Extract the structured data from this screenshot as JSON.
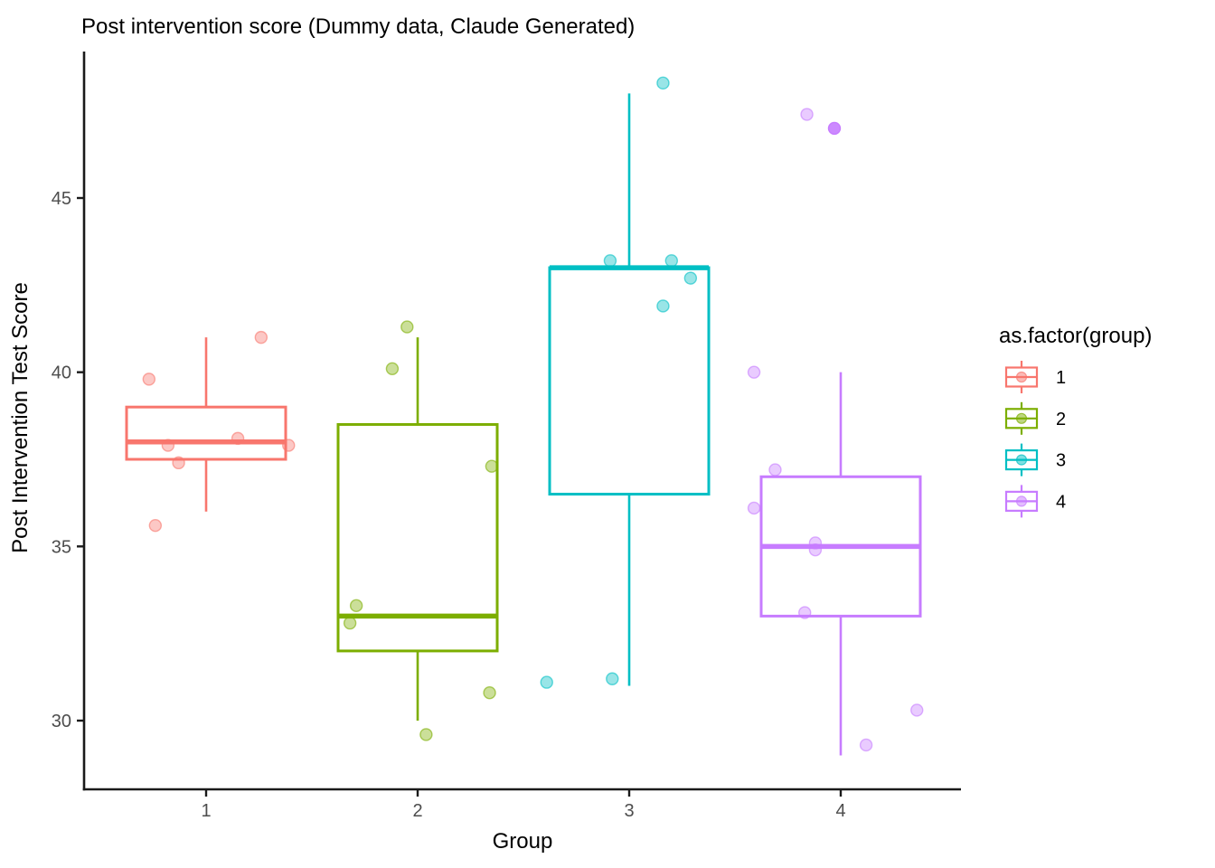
{
  "chart_data": {
    "type": "boxplot",
    "title": "Post intervention score (Dummy data, Claude Generated)",
    "xlabel": "Group",
    "ylabel": "Post Intervention Test Score",
    "categories": [
      "1",
      "2",
      "3",
      "4"
    ],
    "y_ticks": [
      30,
      35,
      40,
      45
    ],
    "ylim": [
      28.0,
      49.2
    ],
    "grid": false,
    "panel_background": "#ffffff",
    "axis_color": "#1a1a1a",
    "tick_label_color": "#4d4d4d",
    "legend": {
      "title": "as.factor(group)",
      "position": "right",
      "entries": [
        {
          "label": "1",
          "color": "#F8766D"
        },
        {
          "label": "2",
          "color": "#7CAE00"
        },
        {
          "label": "3",
          "color": "#00BFC4"
        },
        {
          "label": "4",
          "color": "#C77CFF"
        }
      ]
    },
    "series": [
      {
        "name": "1",
        "color": "#F8766D",
        "box": {
          "whisker_low": 36.0,
          "q1": 37.5,
          "median": 38.0,
          "q3": 39.0,
          "whisker_high": 41.0
        },
        "points": [
          {
            "dx": 0.26,
            "y": 41.0
          },
          {
            "dx": -0.27,
            "y": 39.8
          },
          {
            "dx": 0.15,
            "y": 38.1
          },
          {
            "dx": -0.18,
            "y": 37.9
          },
          {
            "dx": 0.39,
            "y": 37.9
          },
          {
            "dx": -0.13,
            "y": 37.4
          },
          {
            "dx": -0.24,
            "y": 35.6
          }
        ]
      },
      {
        "name": "2",
        "color": "#7CAE00",
        "box": {
          "whisker_low": 30.0,
          "q1": 32.0,
          "median": 33.0,
          "q3": 38.5,
          "whisker_high": 41.0
        },
        "points": [
          {
            "dx": -0.05,
            "y": 41.3
          },
          {
            "dx": -0.12,
            "y": 40.1
          },
          {
            "dx": 0.35,
            "y": 37.3
          },
          {
            "dx": -0.29,
            "y": 33.3
          },
          {
            "dx": -0.32,
            "y": 32.8
          },
          {
            "dx": 0.34,
            "y": 30.8
          },
          {
            "dx": 0.04,
            "y": 29.6
          }
        ]
      },
      {
        "name": "3",
        "color": "#00BFC4",
        "box": {
          "whisker_low": 31.0,
          "q1": 36.5,
          "median": 43.0,
          "q3": 43.0,
          "whisker_high": 48.0
        },
        "points": [
          {
            "dx": 0.16,
            "y": 48.3
          },
          {
            "dx": -0.09,
            "y": 43.2
          },
          {
            "dx": 0.2,
            "y": 43.2
          },
          {
            "dx": 0.29,
            "y": 42.7
          },
          {
            "dx": 0.16,
            "y": 41.9
          },
          {
            "dx": -0.08,
            "y": 31.2
          },
          {
            "dx": -0.39,
            "y": 31.1
          }
        ]
      },
      {
        "name": "4",
        "color": "#C77CFF",
        "box": {
          "whisker_low": 29.0,
          "q1": 33.0,
          "median": 35.0,
          "q3": 37.0,
          "whisker_high": 40.0
        },
        "points": [
          {
            "dx": -0.16,
            "y": 47.4
          },
          {
            "dx": -0.03,
            "y": 47.0,
            "opacity": 0.9
          },
          {
            "dx": -0.41,
            "y": 40.0
          },
          {
            "dx": -0.31,
            "y": 37.2
          },
          {
            "dx": -0.41,
            "y": 36.1
          },
          {
            "dx": -0.12,
            "y": 35.1
          },
          {
            "dx": -0.12,
            "y": 34.9
          },
          {
            "dx": -0.17,
            "y": 33.1
          },
          {
            "dx": 0.36,
            "y": 30.3
          },
          {
            "dx": 0.12,
            "y": 29.3
          }
        ]
      }
    ]
  }
}
